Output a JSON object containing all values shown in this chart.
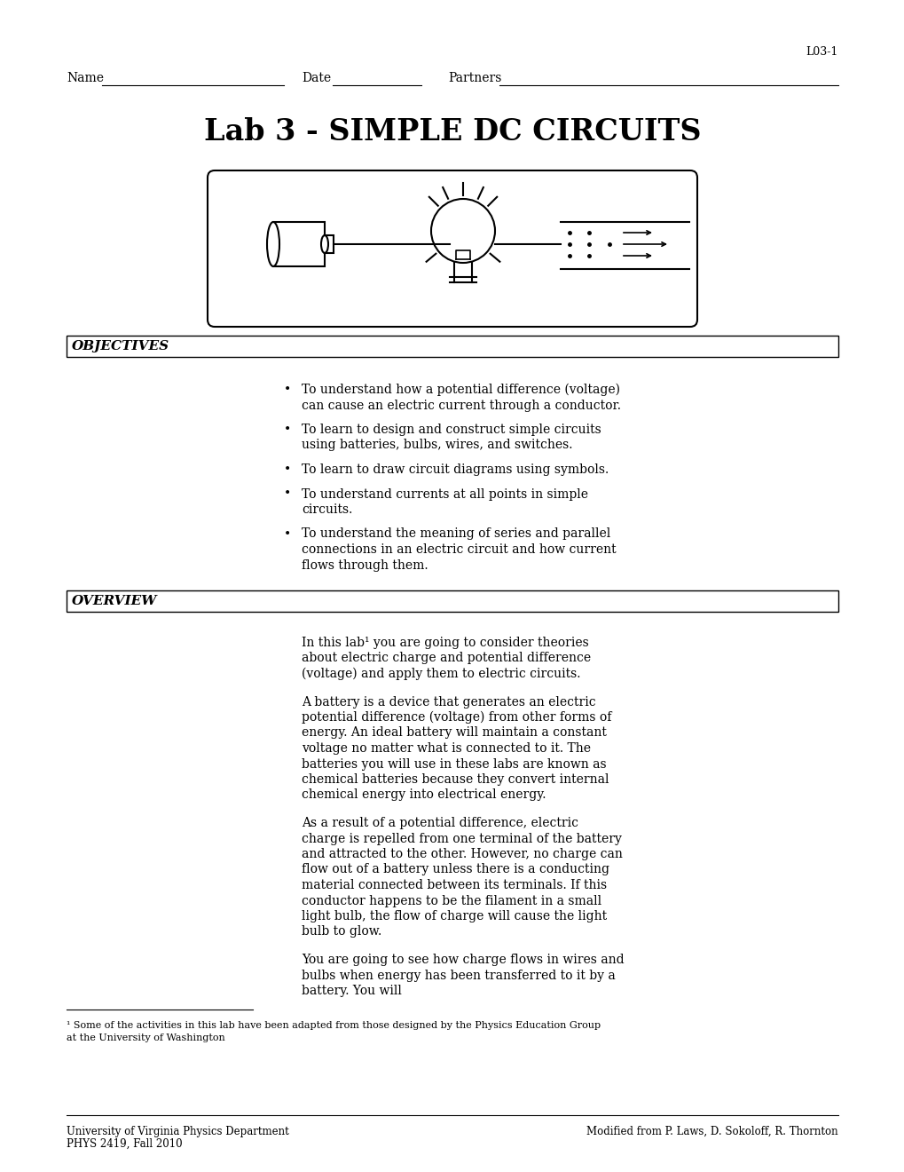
{
  "page_label": "L03-1",
  "header_name": "Name",
  "header_date": "Date",
  "header_partners": "Partners",
  "title": "Lab 3 - SIMPLE DC CIRCUITS",
  "objectives_label": "OBJECTIVES",
  "objectives_items": [
    "To understand how a potential difference (voltage) can cause an electric current through a conductor.",
    "To learn to design and construct simple circuits using batteries, bulbs, wires, and switches.",
    "To learn to draw circuit diagrams using symbols.",
    "To understand currents at all points in simple circuits.",
    "To understand the meaning of series and parallel connections in an electric circuit and how current flows through them."
  ],
  "overview_label": "OVERVIEW",
  "overview_para1": "In this lab¹ you are going to consider theories about electric charge and potential difference (voltage) and apply them to electric circuits.",
  "overview_para2a": "A ",
  "overview_para2b": "battery",
  "overview_para2c": " is a device that generates an electric potential difference (voltage) from other forms of energy.  An ",
  "overview_para2d": "ideal",
  "overview_para2e": " battery will maintain a constant voltage no matter what is connected to it.  The batteries you will use in these labs are known as chemical batteries because they convert internal chemical energy into electrical energy.",
  "overview_para3": "As a result of a potential difference, electric charge is repelled from one terminal of the battery and attracted to the other. However, no charge can flow out of a battery unless there is a conducting material connected between its terminals.  If this conductor happens to be the filament in a small light bulb, the flow of charge will cause the light bulb to glow.",
  "overview_para4": "You are going to see how charge flows in wires and bulbs when energy has been transferred to it by a battery.  You will",
  "footnote_line1": "¹ Some of the activities in this lab have been adapted from those designed by the Physics Education Group",
  "footnote_line2": "at the University of Washington",
  "footer_left1": "University of Virginia Physics Department",
  "footer_left2": "PHYS 2419, Fall 2010",
  "footer_right": "Modified from P. Laws, D. Sokoloff, R. Thornton",
  "bg_color": "#ffffff",
  "text_color": "#000000"
}
